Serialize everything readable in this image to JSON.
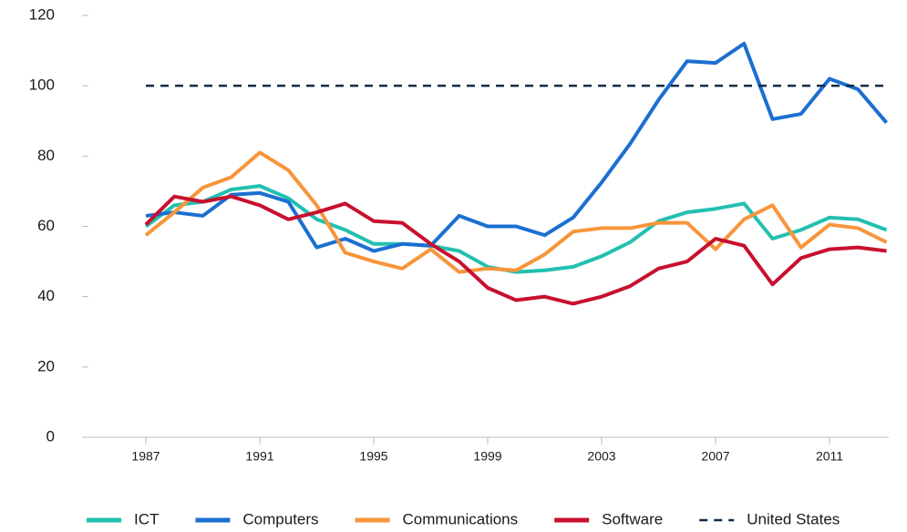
{
  "chart_data": {
    "type": "line",
    "x": [
      1987,
      1988,
      1989,
      1990,
      1991,
      1992,
      1993,
      1994,
      1995,
      1996,
      1997,
      1998,
      1999,
      2000,
      2001,
      2002,
      2003,
      2004,
      2005,
      2006,
      2007,
      2008,
      2009,
      2010,
      2011,
      2012,
      2013
    ],
    "xlim": [
      1985,
      2013
    ],
    "xticks": [
      1987,
      1991,
      1995,
      1999,
      2003,
      2007,
      2011
    ],
    "ylim": [
      0,
      120
    ],
    "yticks": [
      0,
      20,
      40,
      60,
      80,
      100,
      120
    ],
    "grid": false,
    "legend": "bottom",
    "series": [
      {
        "name": "ICT",
        "color": "#22c0b0",
        "dashed": false,
        "values": [
          60,
          66,
          67,
          70.5,
          71.5,
          68,
          62,
          59,
          55,
          55,
          54.5,
          53,
          48.5,
          47,
          47.5,
          48.5,
          51.5,
          55.5,
          61.5,
          64,
          65,
          66.5,
          56.5,
          59,
          62.5,
          62,
          59
        ]
      },
      {
        "name": "Computers",
        "color": "#1b6fd1",
        "dashed": false,
        "values": [
          63,
          64,
          63,
          69,
          69.5,
          67,
          54,
          56.5,
          53,
          55,
          54.5,
          63,
          60,
          60,
          57.5,
          62.5,
          72.5,
          83.5,
          96,
          107,
          106.5,
          112,
          90.5,
          92,
          102,
          99,
          89.5
        ]
      },
      {
        "name": "Communications",
        "color": "#f7953b",
        "dashed": false,
        "values": [
          57.5,
          64,
          71,
          74,
          81,
          76,
          66,
          52.5,
          50,
          48,
          53.5,
          47,
          48,
          47.5,
          52,
          58.5,
          59.5,
          59.5,
          61,
          61,
          53.5,
          62,
          66,
          54,
          60.5,
          59.5,
          55.5
        ]
      },
      {
        "name": "Software",
        "color": "#c8102e",
        "dashed": false,
        "values": [
          60.5,
          68.5,
          67,
          68.5,
          66,
          62,
          64,
          66.5,
          61.5,
          61,
          55,
          50,
          42.5,
          39,
          40,
          38,
          40,
          43,
          48,
          50,
          56.5,
          54.5,
          43.5,
          51,
          53.5,
          54,
          53
        ]
      },
      {
        "name": "United States",
        "color": "#0d2b48",
        "dashed": true,
        "values": [
          100,
          100,
          100,
          100,
          100,
          100,
          100,
          100,
          100,
          100,
          100,
          100,
          100,
          100,
          100,
          100,
          100,
          100,
          100,
          100,
          100,
          100,
          100,
          100,
          100,
          100,
          100
        ]
      }
    ]
  }
}
